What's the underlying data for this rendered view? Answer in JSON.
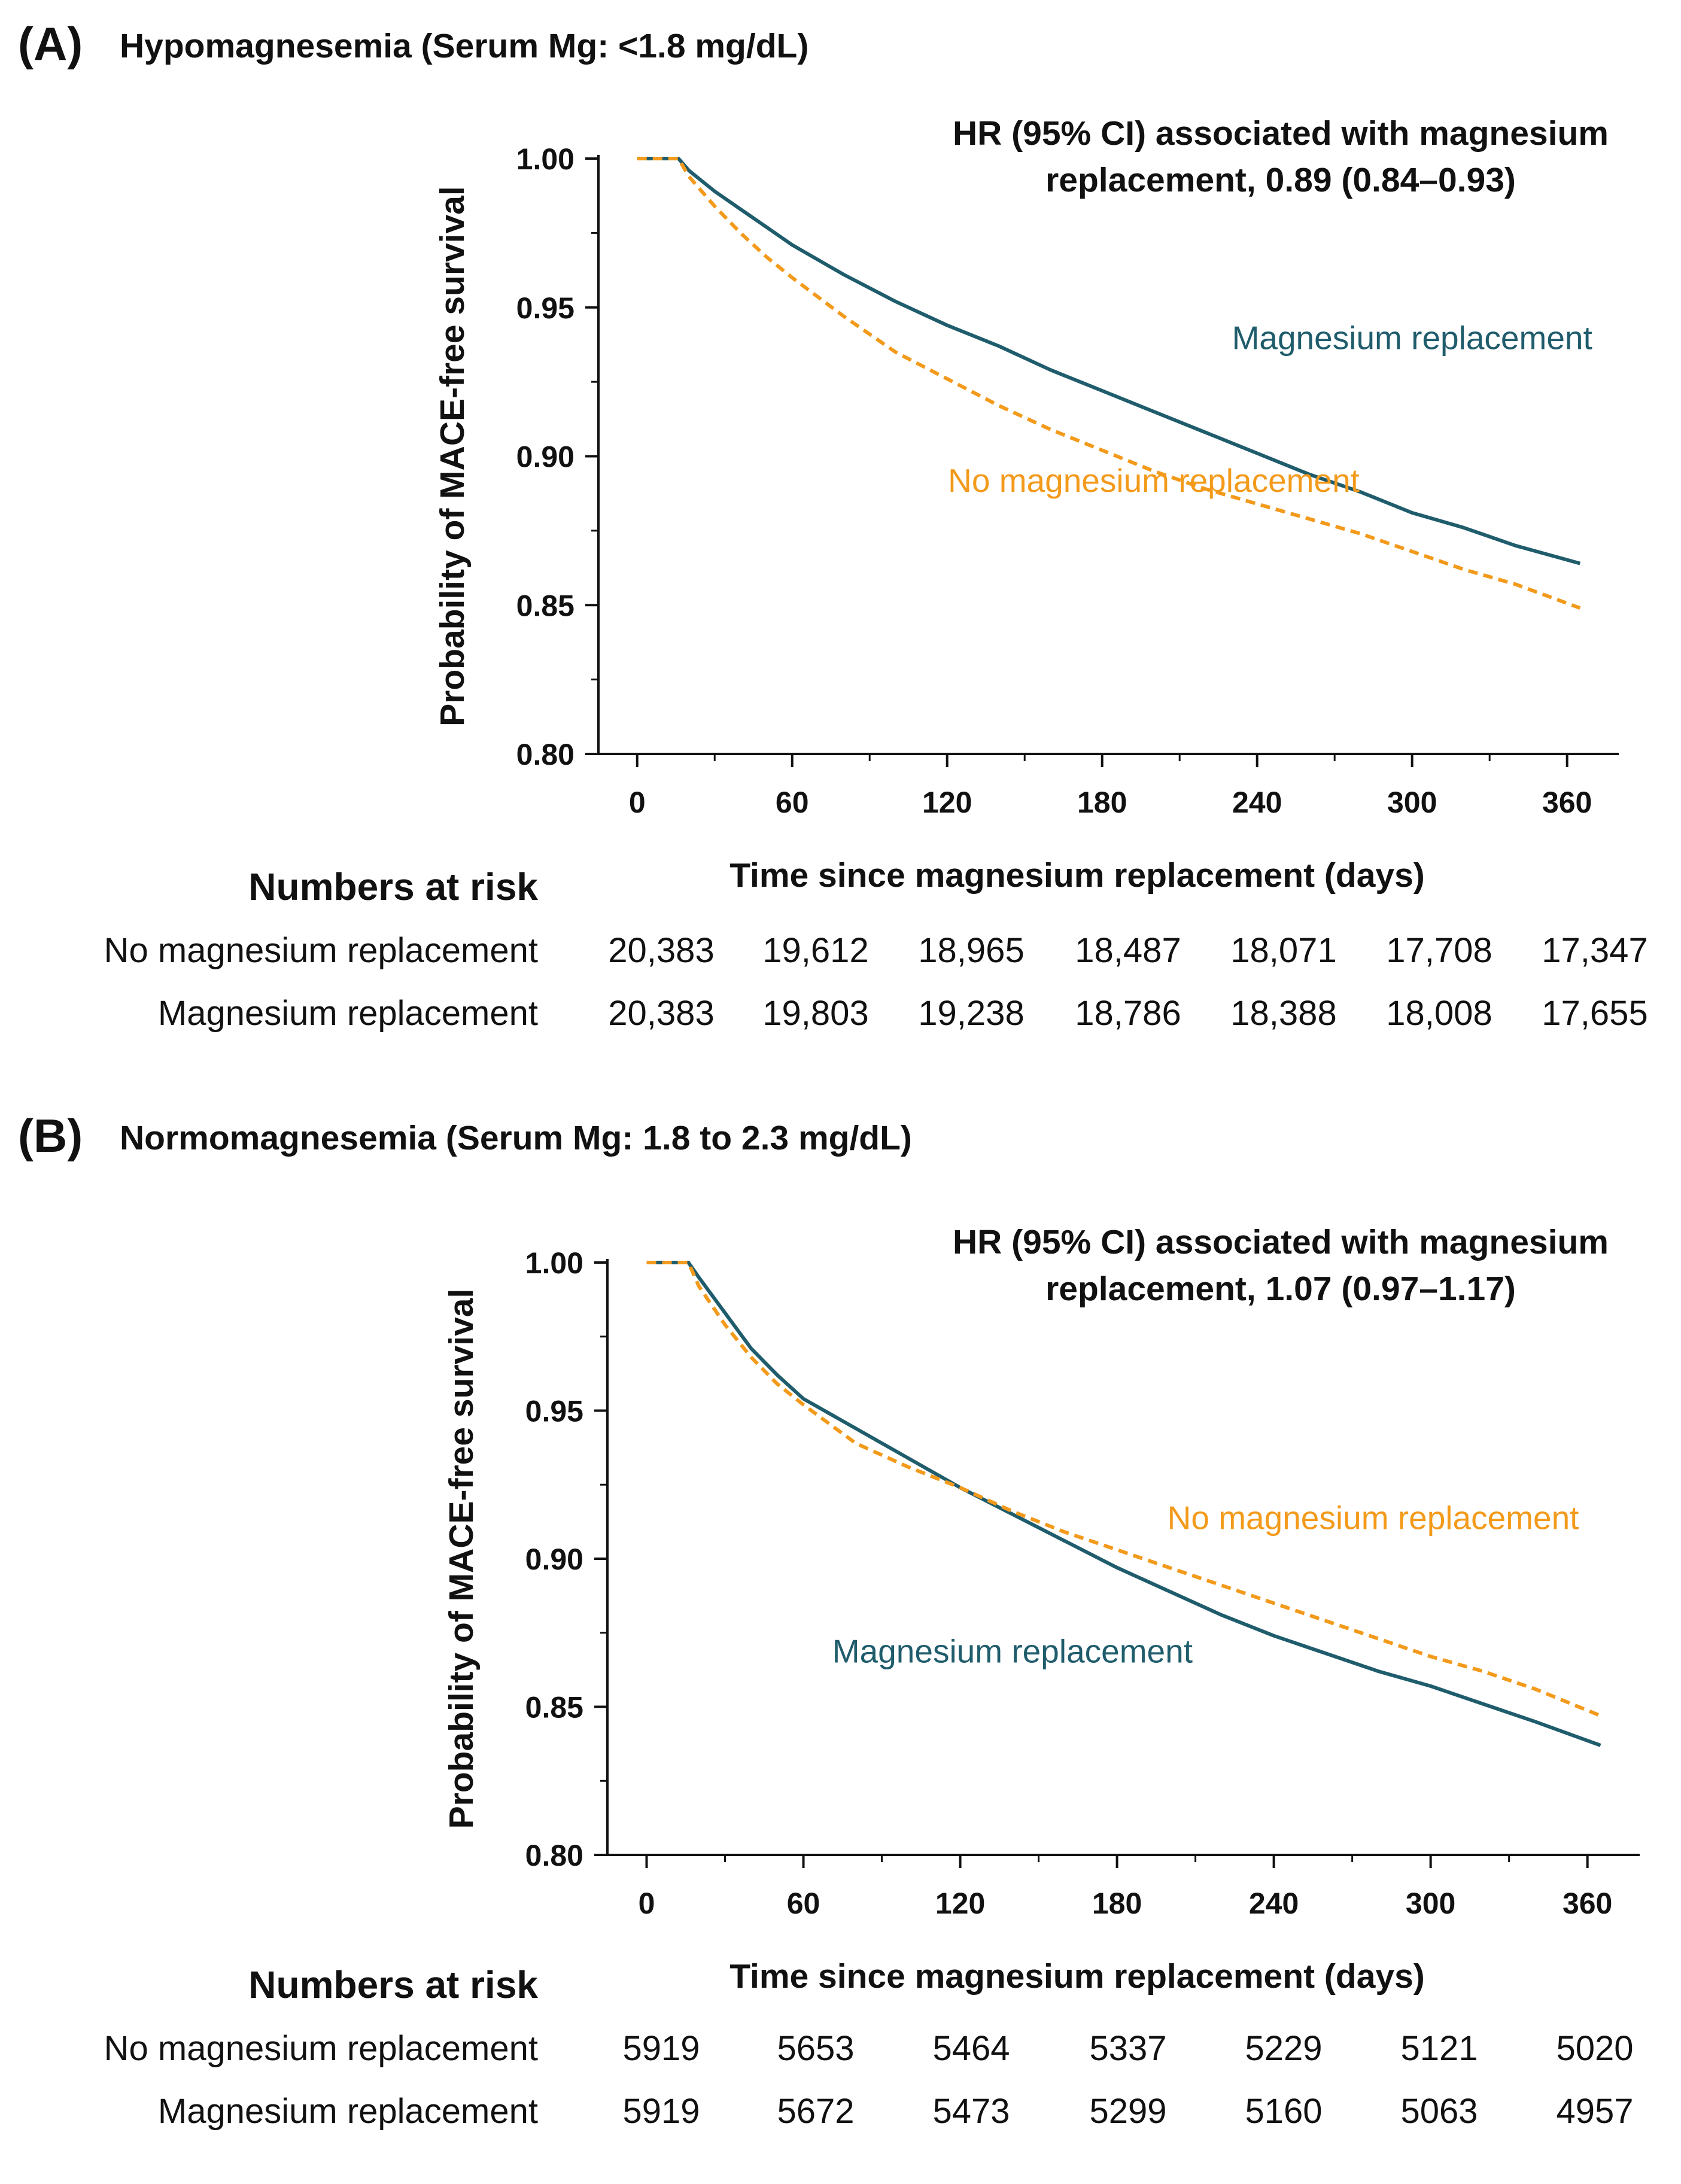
{
  "colors": {
    "replacement": "#1f5c6c",
    "no_replacement": "#f39a1b",
    "axis": "#111111"
  },
  "chart_data": [
    {
      "type": "line",
      "panel_label": "(A)",
      "title": "Hypomagnesemia (Serum Mg: <1.8 mg/dL)",
      "xlabel": "Time since magnesium replacement (days)",
      "ylabel": "Probability of MACE-free survival",
      "xlim": [
        -15,
        380
      ],
      "ylim": [
        0.8,
        1.0
      ],
      "xticks": [
        0,
        60,
        120,
        180,
        240,
        300,
        360
      ],
      "yticks": [
        0.8,
        0.85,
        0.9,
        0.95,
        1.0
      ],
      "annotation": [
        "HR (95% CI) associated with magnesium",
        "replacement, 0.89 (0.84–0.93)"
      ],
      "series": [
        {
          "name": "Magnesium replacement",
          "color": "#1f5c6c",
          "style": "solid",
          "x": [
            0,
            16,
            20,
            30,
            40,
            50,
            60,
            80,
            100,
            120,
            140,
            160,
            180,
            200,
            220,
            240,
            260,
            280,
            300,
            320,
            340,
            365
          ],
          "y": [
            1.0,
            1.0,
            0.996,
            0.989,
            0.983,
            0.977,
            0.971,
            0.961,
            0.952,
            0.944,
            0.937,
            0.929,
            0.922,
            0.915,
            0.908,
            0.901,
            0.894,
            0.888,
            0.881,
            0.876,
            0.87,
            0.864
          ]
        },
        {
          "name": "No magnesium replacement",
          "color": "#f39a1b",
          "style": "dashed",
          "x": [
            0,
            16,
            20,
            30,
            40,
            50,
            60,
            80,
            100,
            120,
            140,
            160,
            180,
            200,
            220,
            240,
            260,
            280,
            300,
            320,
            340,
            365
          ],
          "y": [
            1.0,
            1.0,
            0.994,
            0.984,
            0.975,
            0.967,
            0.96,
            0.947,
            0.935,
            0.926,
            0.917,
            0.909,
            0.902,
            0.895,
            0.889,
            0.884,
            0.879,
            0.874,
            0.868,
            0.862,
            0.857,
            0.849
          ]
        }
      ],
      "line_labels": [
        {
          "text": "Magnesium replacement",
          "color": "#1f5c6c",
          "x": 300,
          "y": 0.936
        },
        {
          "text": "No magnesium replacement",
          "color": "#f39a1b",
          "x": 200,
          "y": 0.888
        }
      ],
      "risk_table": {
        "title": "Numbers at risk",
        "rows": [
          {
            "label": "No magnesium replacement",
            "values": [
              "20,383",
              "19,612",
              "18,965",
              "18,487",
              "18,071",
              "17,708",
              "17,347"
            ]
          },
          {
            "label": "Magnesium replacement",
            "values": [
              "20,383",
              "19,803",
              "19,238",
              "18,786",
              "18,388",
              "18,008",
              "17,655"
            ]
          }
        ]
      }
    },
    {
      "type": "line",
      "panel_label": "(B)",
      "title": "Normomagnesemia (Serum Mg: 1.8 to 2.3 mg/dL)",
      "xlabel": "Time since magnesium replacement (days)",
      "ylabel": "Probability of MACE-free survival",
      "xlim": [
        -15,
        380
      ],
      "ylim": [
        0.8,
        1.0
      ],
      "xticks": [
        0,
        60,
        120,
        180,
        240,
        300,
        360
      ],
      "yticks": [
        0.8,
        0.85,
        0.9,
        0.95,
        1.0
      ],
      "annotation": [
        "HR (95% CI) associated with magnesium",
        "replacement, 1.07 (0.97–1.17)"
      ],
      "series": [
        {
          "name": "Magnesium replacement",
          "color": "#1f5c6c",
          "style": "solid",
          "x": [
            0,
            16,
            20,
            30,
            40,
            50,
            60,
            80,
            100,
            120,
            140,
            160,
            180,
            200,
            220,
            240,
            260,
            280,
            300,
            320,
            340,
            365
          ],
          "y": [
            1.0,
            1.0,
            0.995,
            0.983,
            0.971,
            0.962,
            0.954,
            0.944,
            0.934,
            0.924,
            0.915,
            0.906,
            0.897,
            0.889,
            0.881,
            0.874,
            0.868,
            0.862,
            0.857,
            0.851,
            0.845,
            0.837
          ]
        },
        {
          "name": "No magnesium replacement",
          "color": "#f39a1b",
          "style": "dashed",
          "x": [
            0,
            16,
            20,
            30,
            40,
            50,
            60,
            80,
            100,
            120,
            140,
            160,
            180,
            200,
            220,
            240,
            260,
            280,
            300,
            320,
            340,
            365
          ],
          "y": [
            1.0,
            1.0,
            0.992,
            0.979,
            0.968,
            0.959,
            0.952,
            0.939,
            0.931,
            0.924,
            0.916,
            0.909,
            0.903,
            0.897,
            0.891,
            0.885,
            0.879,
            0.873,
            0.867,
            0.862,
            0.856,
            0.847
          ]
        }
      ],
      "line_labels": [
        {
          "text": "No magnesium replacement",
          "color": "#f39a1b",
          "x": 278,
          "y": 0.91
        },
        {
          "text": "Magnesium replacement",
          "color": "#1f5c6c",
          "x": 140,
          "y": 0.865
        }
      ],
      "risk_table": {
        "title": "Numbers at risk",
        "rows": [
          {
            "label": "No magnesium replacement",
            "values": [
              "5919",
              "5653",
              "5464",
              "5337",
              "5229",
              "5121",
              "5020"
            ]
          },
          {
            "label": "Magnesium replacement",
            "values": [
              "5919",
              "5672",
              "5473",
              "5299",
              "5160",
              "5063",
              "4957"
            ]
          }
        ]
      }
    }
  ]
}
